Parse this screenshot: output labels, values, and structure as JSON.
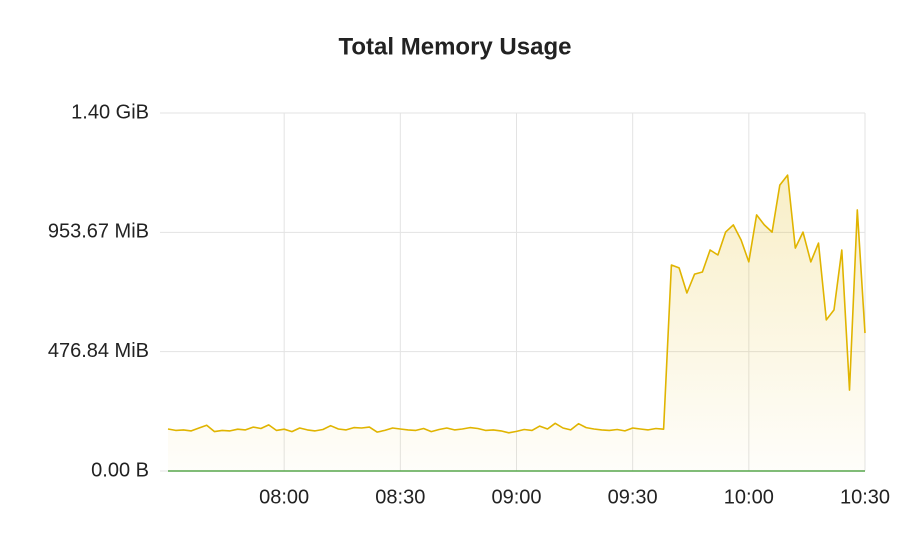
{
  "chart_data": {
    "type": "line",
    "title": "Total Memory Usage",
    "x": [
      "07:30",
      "07:32",
      "07:34",
      "07:36",
      "07:38",
      "07:40",
      "07:42",
      "07:44",
      "07:46",
      "07:48",
      "07:50",
      "07:52",
      "07:54",
      "07:56",
      "07:58",
      "08:00",
      "08:02",
      "08:04",
      "08:06",
      "08:08",
      "08:10",
      "08:12",
      "08:14",
      "08:16",
      "08:18",
      "08:20",
      "08:22",
      "08:24",
      "08:26",
      "08:28",
      "08:30",
      "08:32",
      "08:34",
      "08:36",
      "08:38",
      "08:40",
      "08:42",
      "08:44",
      "08:46",
      "08:48",
      "08:50",
      "08:52",
      "08:54",
      "08:56",
      "08:58",
      "09:00",
      "09:02",
      "09:04",
      "09:06",
      "09:08",
      "09:10",
      "09:12",
      "09:14",
      "09:16",
      "09:18",
      "09:20",
      "09:22",
      "09:24",
      "09:26",
      "09:28",
      "09:30",
      "09:32",
      "09:34",
      "09:36",
      "09:38",
      "09:40",
      "09:42",
      "09:44",
      "09:46",
      "09:48",
      "09:50",
      "09:52",
      "09:54",
      "09:56",
      "09:58",
      "10:00",
      "10:02",
      "10:04",
      "10:06",
      "10:08",
      "10:10",
      "10:12",
      "10:14",
      "10:16",
      "10:18",
      "10:20",
      "10:22",
      "10:24",
      "10:26",
      "10:28",
      "10:30"
    ],
    "series": [
      {
        "color": "#e0b400",
        "fill": true,
        "values": [
          176000000,
          170000000,
          172000000,
          168000000,
          180000000,
          192000000,
          165000000,
          170000000,
          168000000,
          175000000,
          172000000,
          184000000,
          178000000,
          193000000,
          170000000,
          175000000,
          165000000,
          180000000,
          172000000,
          168000000,
          174000000,
          190000000,
          176000000,
          172000000,
          182000000,
          180000000,
          184000000,
          163000000,
          170000000,
          180000000,
          176000000,
          172000000,
          170000000,
          178000000,
          165000000,
          174000000,
          180000000,
          172000000,
          176000000,
          182000000,
          178000000,
          170000000,
          172000000,
          168000000,
          160000000,
          166000000,
          174000000,
          170000000,
          188000000,
          176000000,
          200000000,
          180000000,
          172000000,
          198000000,
          182000000,
          176000000,
          172000000,
          170000000,
          174000000,
          168000000,
          180000000,
          176000000,
          172000000,
          178000000,
          175000000,
          863000000,
          851000000,
          746000000,
          825000000,
          834000000,
          926000000,
          905000000,
          1001000000,
          1031000000,
          968000000,
          876000000,
          1073000000,
          1031000000,
          1001000000,
          1198000000,
          1240000000,
          934000000,
          1001000000,
          876000000,
          955000000,
          633000000,
          675000000,
          926000000,
          339000000,
          1094000000,
          578000000
        ]
      },
      {
        "color": "#56a64b",
        "fill": false,
        "values": [
          0,
          0,
          0,
          0,
          0,
          0,
          0,
          0,
          0,
          0,
          0,
          0,
          0,
          0,
          0,
          0,
          0,
          0,
          0,
          0,
          0,
          0,
          0,
          0,
          0,
          0,
          0,
          0,
          0,
          0,
          0,
          0,
          0,
          0,
          0,
          0,
          0,
          0,
          0,
          0,
          0,
          0,
          0,
          0,
          0,
          0,
          0,
          0,
          0,
          0,
          0,
          0,
          0,
          0,
          0,
          0,
          0,
          0,
          0,
          0,
          0,
          0,
          0,
          0,
          0,
          0,
          0,
          0,
          0,
          0,
          0,
          0,
          0,
          0,
          0,
          0,
          0,
          0,
          0,
          0,
          0,
          0,
          0,
          0,
          0,
          0,
          0,
          0,
          0,
          0,
          0
        ]
      }
    ],
    "xlim": [
      "07:30",
      "10:30"
    ],
    "xticks": [
      "08:00",
      "08:30",
      "09:00",
      "09:30",
      "10:00",
      "10:30"
    ],
    "ylim": [
      0,
      1500000000
    ],
    "yticks": [
      {
        "value": 0,
        "label": "0.00 B"
      },
      {
        "value": 500000000,
        "label": "476.84 MiB"
      },
      {
        "value": 1000000000,
        "label": "953.67 MiB"
      },
      {
        "value": 1500000000,
        "label": "1.40 GiB"
      }
    ],
    "grid": true
  }
}
